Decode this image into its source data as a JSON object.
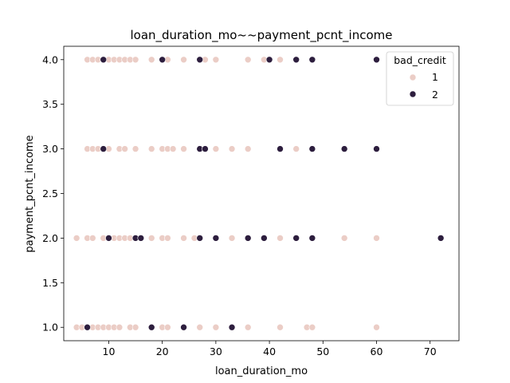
{
  "chart_data": {
    "type": "scatter",
    "title": "loan_duration_mo~~payment_pcnt_income",
    "xlabel": "loan_duration_mo",
    "ylabel": "payment_pcnt_income",
    "xlim": [
      1.6,
      75.4
    ],
    "ylim": [
      0.85,
      4.15
    ],
    "xticks": [
      10,
      20,
      30,
      40,
      50,
      60,
      70
    ],
    "yticks": [
      1.0,
      1.5,
      2.0,
      2.5,
      3.0,
      3.5,
      4.0
    ],
    "xtick_labels": [
      "10",
      "20",
      "30",
      "40",
      "50",
      "60",
      "70"
    ],
    "ytick_labels": [
      "1.0",
      "1.5",
      "2.0",
      "2.5",
      "3.0",
      "3.5",
      "4.0"
    ],
    "grid": false,
    "legend": {
      "title": "bad_credit",
      "placement": "top-right"
    },
    "series": [
      {
        "name": "1",
        "color": "#ebcdc6",
        "points": [
          [
            6,
            4
          ],
          [
            7,
            4
          ],
          [
            8,
            4
          ],
          [
            9,
            4
          ],
          [
            10,
            4
          ],
          [
            11,
            4
          ],
          [
            12,
            4
          ],
          [
            13,
            4
          ],
          [
            14,
            4
          ],
          [
            15,
            4
          ],
          [
            18,
            4
          ],
          [
            21,
            4
          ],
          [
            24,
            4
          ],
          [
            27,
            4
          ],
          [
            28,
            4
          ],
          [
            30,
            4
          ],
          [
            36,
            4
          ],
          [
            39,
            4
          ],
          [
            42,
            4
          ],
          [
            45,
            4
          ],
          [
            60,
            4
          ],
          [
            6,
            3
          ],
          [
            7,
            3
          ],
          [
            8,
            3
          ],
          [
            10,
            3
          ],
          [
            12,
            3
          ],
          [
            13,
            3
          ],
          [
            15,
            3
          ],
          [
            18,
            3
          ],
          [
            20,
            3
          ],
          [
            21,
            3
          ],
          [
            22,
            3
          ],
          [
            24,
            3
          ],
          [
            30,
            3
          ],
          [
            33,
            3
          ],
          [
            36,
            3
          ],
          [
            42,
            3
          ],
          [
            45,
            3
          ],
          [
            48,
            3
          ],
          [
            4,
            2
          ],
          [
            6,
            2
          ],
          [
            7,
            2
          ],
          [
            9,
            2
          ],
          [
            10,
            2
          ],
          [
            11,
            2
          ],
          [
            12,
            2
          ],
          [
            13,
            2
          ],
          [
            14,
            2
          ],
          [
            15,
            2
          ],
          [
            16,
            2
          ],
          [
            18,
            2
          ],
          [
            20,
            2
          ],
          [
            21,
            2
          ],
          [
            24,
            2
          ],
          [
            26,
            2
          ],
          [
            27,
            2
          ],
          [
            30,
            2
          ],
          [
            33,
            2
          ],
          [
            36,
            2
          ],
          [
            39,
            2
          ],
          [
            42,
            2
          ],
          [
            45,
            2
          ],
          [
            48,
            2
          ],
          [
            54,
            2
          ],
          [
            60,
            2
          ],
          [
            4,
            1
          ],
          [
            5,
            1
          ],
          [
            6,
            1
          ],
          [
            7,
            1
          ],
          [
            8,
            1
          ],
          [
            9,
            1
          ],
          [
            10,
            1
          ],
          [
            11,
            1
          ],
          [
            12,
            1
          ],
          [
            14,
            1
          ],
          [
            15,
            1
          ],
          [
            18,
            1
          ],
          [
            20,
            1
          ],
          [
            21,
            1
          ],
          [
            24,
            1
          ],
          [
            27,
            1
          ],
          [
            30,
            1
          ],
          [
            33,
            1
          ],
          [
            36,
            1
          ],
          [
            42,
            1
          ],
          [
            47,
            1
          ],
          [
            48,
            1
          ],
          [
            60,
            1
          ]
        ]
      },
      {
        "name": "2",
        "color": "#2d1e3e",
        "points": [
          [
            9,
            4
          ],
          [
            20,
            4
          ],
          [
            27,
            4
          ],
          [
            40,
            4
          ],
          [
            45,
            4
          ],
          [
            48,
            4
          ],
          [
            60,
            4
          ],
          [
            9,
            3
          ],
          [
            27,
            3
          ],
          [
            28,
            3
          ],
          [
            42,
            3
          ],
          [
            48,
            3
          ],
          [
            54,
            3
          ],
          [
            60,
            3
          ],
          [
            10,
            2
          ],
          [
            15,
            2
          ],
          [
            16,
            2
          ],
          [
            27,
            2
          ],
          [
            30,
            2
          ],
          [
            36,
            2
          ],
          [
            39,
            2
          ],
          [
            45,
            2
          ],
          [
            48,
            2
          ],
          [
            72,
            2
          ],
          [
            6,
            1
          ],
          [
            18,
            1
          ],
          [
            24,
            1
          ],
          [
            33,
            1
          ]
        ]
      }
    ]
  }
}
